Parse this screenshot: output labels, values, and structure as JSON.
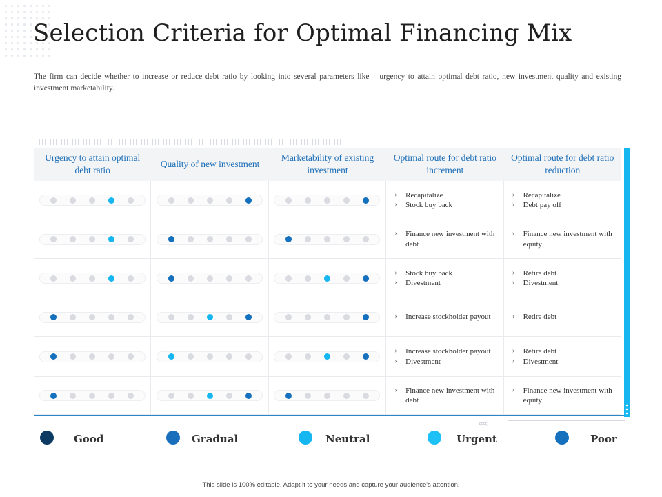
{
  "title": "Selection Criteria for Optimal Financing Mix",
  "description": "The firm can decide whether to increase or reduce debt ratio by looking into several parameters like – urgency to attain optimal debt ratio, new investment quality and existing investment marketability.",
  "colors": {
    "good": "#0c3a63",
    "gradual": "#1a6fbd",
    "neutral": "#16b7f0",
    "urgent": "#1ec1f5",
    "poor": "#1570bd",
    "inactive": "#d9dbe0",
    "accent_bar": "#16b7f0"
  },
  "table": {
    "headers": [
      "Urgency to attain optimal debt ratio",
      "Quality of new investment",
      "Marketability of existing investment",
      "Optimal route for debt ratio increment",
      "Optimal route for debt ratio reduction"
    ],
    "rows": [
      {
        "urgency": {
          "active": 3,
          "color": "neutral"
        },
        "quality": {
          "active": 4,
          "color": "poor"
        },
        "marketability": {
          "active": 4,
          "color": "poor"
        },
        "increment": [
          "Recapitalize",
          "Stock buy back"
        ],
        "reduction": [
          "Recapitalize",
          "Debt pay off"
        ]
      },
      {
        "urgency": {
          "active": 3,
          "color": "neutral"
        },
        "quality": {
          "active": 0,
          "color": "poor"
        },
        "marketability": {
          "active": 0,
          "color": "poor"
        },
        "increment": [
          "Finance new investment with debt"
        ],
        "reduction": [
          "Finance new investment with equity"
        ]
      },
      {
        "urgency": {
          "active": 3,
          "color": "neutral"
        },
        "quality": {
          "active": 0,
          "color": "poor"
        },
        "marketability": {
          "active": [
            2,
            4
          ],
          "colors": [
            "neutral",
            "poor"
          ]
        },
        "increment": [
          "Stock buy back",
          "Divestment"
        ],
        "reduction": [
          "Retire debt",
          "Divestment"
        ]
      },
      {
        "urgency": {
          "active": 0,
          "color": "poor"
        },
        "quality": {
          "active": [
            2,
            4
          ],
          "colors": [
            "neutral",
            "poor"
          ]
        },
        "marketability": {
          "active": 4,
          "color": "poor"
        },
        "increment": [
          "Increase stockholder payout"
        ],
        "reduction": [
          "Retire debt"
        ]
      },
      {
        "urgency": {
          "active": 0,
          "color": "poor"
        },
        "quality": {
          "active": 0,
          "color": "neutral"
        },
        "marketability": {
          "active": [
            2,
            4
          ],
          "colors": [
            "neutral",
            "poor"
          ]
        },
        "increment": [
          "Increase stockholder payout",
          "Divestment"
        ],
        "reduction": [
          "Retire debt",
          "Divestment"
        ]
      },
      {
        "urgency": {
          "active": 0,
          "color": "poor"
        },
        "quality": {
          "active": [
            2,
            4
          ],
          "colors": [
            "neutral",
            "poor"
          ]
        },
        "marketability": {
          "active": 0,
          "color": "poor"
        },
        "increment": [
          "Finance new investment with debt"
        ],
        "reduction": [
          "Finance new investment with equity"
        ]
      }
    ]
  },
  "legend": [
    {
      "label": "Good",
      "color": "#0c3a63"
    },
    {
      "label": "Gradual",
      "color": "#1a6fbd"
    },
    {
      "label": "Neutral",
      "color": "#16b7f0"
    },
    {
      "label": "Urgent",
      "color": "#1ec1f5"
    },
    {
      "label": "Poor",
      "color": "#1570bd"
    }
  ],
  "footer": "This slide is 100% editable. Adapt it to your needs and capture your audience's attention."
}
